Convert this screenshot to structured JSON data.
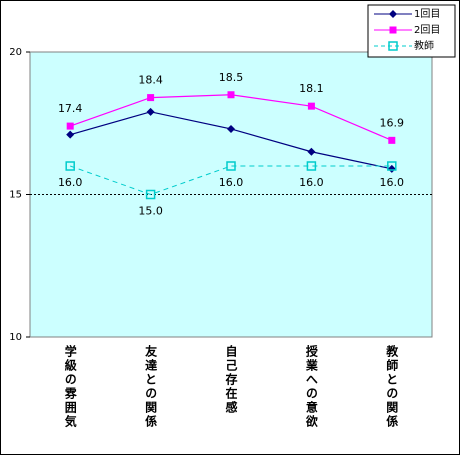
{
  "chart_data": {
    "type": "line",
    "categories": [
      "学級の雰囲気",
      "友達との関係",
      "自己存在感",
      "授業への意欲",
      "教師との関係"
    ],
    "series": [
      {
        "name": "1回目",
        "color": "#000080",
        "marker": "diamond",
        "dash": false,
        "values": [
          17.1,
          17.9,
          17.3,
          16.5,
          15.9
        ]
      },
      {
        "name": "2回目",
        "color": "#ff00ff",
        "marker": "square",
        "dash": false,
        "values": [
          17.4,
          18.4,
          18.5,
          18.1,
          16.9
        ],
        "value_labels": [
          "17.4",
          "18.4",
          "18.5",
          "18.1",
          "16.9"
        ],
        "label_pos": "above"
      },
      {
        "name": "教師",
        "color": "#00cccc",
        "marker": "open-square",
        "dash": true,
        "values": [
          16,
          15,
          16,
          16,
          16
        ],
        "value_labels": [
          "16.0",
          "15.0",
          "16.0",
          "16.0",
          "16.0"
        ],
        "label_pos": "below"
      }
    ],
    "ylim": [
      10,
      20
    ],
    "yticks": [
      10,
      15,
      20
    ],
    "ref_line": 15,
    "background": "#ccffff",
    "legend": "top-right"
  }
}
